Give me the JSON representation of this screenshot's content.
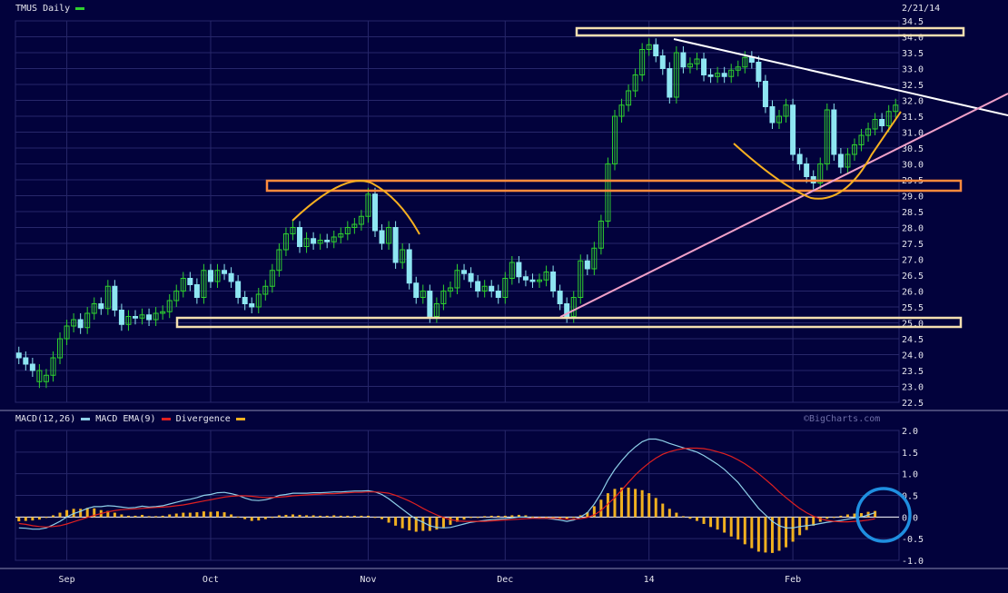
{
  "header": {
    "symbol_title": "TMUS Daily",
    "date_label": "2/21/14"
  },
  "macd_legend": {
    "macd_label": "MACD(12,26)",
    "ema_label": "MACD EMA(9)",
    "div_label": "Divergence",
    "watermark": "©BigCharts.com"
  },
  "colors": {
    "background": "#02023c",
    "grid": "#27276a",
    "up_candle": "#2fd02f",
    "down_candle": "#8ee6f2",
    "macd_line": "#8ecfe8",
    "ema_line": "#e02020",
    "divergence_bars": "#f0b020",
    "resistance_box": "#f4dfb0",
    "orange_box": "#ff8a3d",
    "trendline_white": "#ffffff",
    "trendline_pink": "#f0a0c8",
    "annotation_curve": "#f7b020",
    "circle": "#1f8fe0"
  },
  "chart_data": [
    {
      "type": "candlestick",
      "title": "TMUS Daily",
      "ylim": [
        22.5,
        34.5
      ],
      "yticks": [
        "22.5",
        "23.0",
        "23.5",
        "24.0",
        "24.5",
        "25.0",
        "25.5",
        "26.0",
        "26.5",
        "27.0",
        "27.5",
        "28.0",
        "28.5",
        "29.0",
        "29.5",
        "30.0",
        "30.5",
        "31.0",
        "31.5",
        "32.0",
        "32.5",
        "33.0",
        "33.5",
        "34.0",
        "34.5"
      ],
      "xticks": [
        {
          "label": "Sep",
          "index": 7
        },
        {
          "label": "Oct",
          "index": 28
        },
        {
          "label": "Nov",
          "index": 51
        },
        {
          "label": "Dec",
          "index": 71
        },
        {
          "label": "14",
          "index": 92
        },
        {
          "label": "Feb",
          "index": 113
        }
      ],
      "close": [
        23.9,
        23.7,
        23.5,
        23.15,
        23.35,
        23.9,
        24.5,
        24.9,
        25.1,
        24.85,
        25.3,
        25.6,
        25.45,
        26.15,
        25.4,
        24.95,
        25.2,
        25.15,
        25.25,
        25.1,
        25.3,
        25.35,
        25.7,
        26.0,
        26.4,
        26.2,
        25.8,
        26.65,
        26.3,
        26.65,
        26.55,
        26.3,
        25.8,
        25.6,
        25.5,
        25.9,
        26.15,
        26.65,
        27.3,
        27.8,
        28.0,
        27.4,
        27.65,
        27.5,
        27.6,
        27.55,
        27.7,
        27.8,
        28.0,
        28.1,
        28.35,
        29.05,
        27.9,
        27.5,
        28.0,
        26.9,
        27.3,
        26.25,
        25.8,
        26.0,
        25.2,
        25.6,
        26.0,
        26.1,
        26.65,
        26.55,
        26.3,
        26.0,
        26.15,
        26.0,
        25.8,
        26.4,
        26.9,
        26.45,
        26.35,
        26.3,
        26.35,
        26.6,
        26.0,
        25.6,
        25.2,
        25.8,
        26.95,
        26.7,
        27.35,
        28.2,
        30.0,
        31.5,
        31.85,
        32.3,
        32.8,
        33.6,
        33.75,
        33.4,
        33.0,
        32.1,
        33.5,
        33.05,
        33.15,
        33.3,
        32.8,
        32.75,
        32.85,
        32.75,
        32.95,
        33.05,
        33.35,
        33.2,
        32.6,
        31.8,
        31.3,
        31.5,
        31.85,
        30.3,
        30.0,
        29.6,
        29.4,
        30.0,
        31.7,
        30.3,
        29.9,
        30.3,
        30.6,
        30.9,
        31.1,
        31.4,
        31.2,
        31.65,
        31.85
      ],
      "up": [
        false,
        false,
        false,
        true,
        true,
        true,
        true,
        true,
        true,
        false,
        true,
        true,
        false,
        true,
        false,
        false,
        true,
        false,
        true,
        false,
        true,
        true,
        true,
        true,
        true,
        false,
        false,
        true,
        false,
        true,
        false,
        false,
        false,
        false,
        false,
        true,
        true,
        true,
        true,
        true,
        true,
        false,
        true,
        false,
        true,
        false,
        true,
        true,
        true,
        true,
        true,
        true,
        false,
        false,
        true,
        false,
        true,
        false,
        false,
        true,
        false,
        true,
        true,
        true,
        true,
        false,
        false,
        false,
        true,
        false,
        false,
        true,
        true,
        false,
        false,
        false,
        true,
        true,
        false,
        false,
        false,
        true,
        true,
        false,
        true,
        true,
        true,
        true,
        true,
        true,
        true,
        true,
        true,
        false,
        false,
        false,
        true,
        false,
        true,
        true,
        false,
        false,
        true,
        false,
        true,
        true,
        true,
        false,
        false,
        false,
        false,
        true,
        true,
        false,
        false,
        false,
        false,
        true,
        true,
        false,
        false,
        true,
        true,
        true,
        true,
        true,
        false,
        true,
        true
      ],
      "ylabel": "",
      "xlabel": ""
    },
    {
      "type": "line",
      "title": "MACD(12,26)",
      "ylim": [
        -1.0,
        2.0
      ],
      "yticks": [
        "-1.0",
        "-0.5",
        "0.0",
        "0.5",
        "1.0",
        "1.5",
        "2.0"
      ],
      "series": [
        {
          "name": "MACD(12,26)",
          "values": [
            -0.25,
            -0.26,
            -0.28,
            -0.28,
            -0.25,
            -0.18,
            -0.1,
            0.0,
            0.08,
            0.13,
            0.2,
            0.24,
            0.24,
            0.26,
            0.25,
            0.23,
            0.21,
            0.22,
            0.25,
            0.23,
            0.24,
            0.26,
            0.3,
            0.34,
            0.38,
            0.41,
            0.45,
            0.5,
            0.52,
            0.56,
            0.57,
            0.54,
            0.5,
            0.44,
            0.39,
            0.38,
            0.4,
            0.44,
            0.5,
            0.52,
            0.55,
            0.55,
            0.55,
            0.56,
            0.56,
            0.57,
            0.58,
            0.58,
            0.59,
            0.6,
            0.6,
            0.61,
            0.58,
            0.52,
            0.42,
            0.3,
            0.18,
            0.06,
            -0.05,
            -0.12,
            -0.2,
            -0.24,
            -0.25,
            -0.24,
            -0.2,
            -0.16,
            -0.12,
            -0.1,
            -0.08,
            -0.06,
            -0.05,
            -0.04,
            -0.02,
            0.0,
            0.0,
            -0.02,
            -0.03,
            -0.03,
            -0.05,
            -0.07,
            -0.1,
            -0.07,
            0.0,
            0.1,
            0.3,
            0.55,
            0.85,
            1.1,
            1.3,
            1.48,
            1.62,
            1.74,
            1.8,
            1.8,
            1.76,
            1.7,
            1.65,
            1.6,
            1.55,
            1.5,
            1.42,
            1.32,
            1.22,
            1.1,
            0.95,
            0.8,
            0.6,
            0.4,
            0.2,
            0.05,
            -0.1,
            -0.2,
            -0.25,
            -0.25,
            -0.22,
            -0.2,
            -0.18,
            -0.15,
            -0.12,
            -0.1,
            -0.08,
            -0.05,
            -0.02,
            0.0,
            0.05,
            0.1
          ]
        },
        {
          "name": "MACD EMA(9)",
          "values": [
            -0.15,
            -0.17,
            -0.2,
            -0.22,
            -0.23,
            -0.22,
            -0.2,
            -0.16,
            -0.11,
            -0.06,
            -0.01,
            0.04,
            0.08,
            0.12,
            0.15,
            0.17,
            0.18,
            0.19,
            0.2,
            0.21,
            0.22,
            0.23,
            0.24,
            0.26,
            0.28,
            0.31,
            0.34,
            0.37,
            0.4,
            0.43,
            0.46,
            0.48,
            0.49,
            0.49,
            0.48,
            0.46,
            0.45,
            0.45,
            0.46,
            0.47,
            0.49,
            0.5,
            0.51,
            0.52,
            0.53,
            0.54,
            0.54,
            0.55,
            0.56,
            0.57,
            0.57,
            0.58,
            0.58,
            0.57,
            0.55,
            0.5,
            0.44,
            0.37,
            0.29,
            0.2,
            0.12,
            0.05,
            -0.01,
            -0.06,
            -0.09,
            -0.1,
            -0.1,
            -0.1,
            -0.1,
            -0.09,
            -0.08,
            -0.07,
            -0.06,
            -0.05,
            -0.04,
            -0.03,
            -0.03,
            -0.03,
            -0.03,
            -0.04,
            -0.05,
            -0.05,
            -0.04,
            -0.01,
            0.05,
            0.15,
            0.3,
            0.45,
            0.62,
            0.8,
            0.97,
            1.12,
            1.25,
            1.36,
            1.45,
            1.51,
            1.55,
            1.58,
            1.59,
            1.59,
            1.58,
            1.55,
            1.51,
            1.46,
            1.4,
            1.32,
            1.23,
            1.12,
            1.0,
            0.87,
            0.73,
            0.58,
            0.45,
            0.32,
            0.2,
            0.1,
            0.02,
            -0.04,
            -0.08,
            -0.1,
            -0.11,
            -0.11,
            -0.1,
            -0.09,
            -0.07,
            -0.04
          ]
        },
        {
          "name": "Divergence",
          "values": [
            -0.1,
            -0.09,
            -0.08,
            -0.06,
            -0.02,
            0.04,
            0.1,
            0.16,
            0.19,
            0.19,
            0.21,
            0.2,
            0.16,
            0.14,
            0.1,
            0.06,
            0.03,
            0.03,
            0.05,
            0.02,
            0.02,
            0.03,
            0.06,
            0.08,
            0.1,
            0.1,
            0.11,
            0.13,
            0.12,
            0.13,
            0.11,
            0.06,
            0.01,
            -0.05,
            -0.09,
            -0.08,
            -0.05,
            -0.01,
            0.04,
            0.05,
            0.06,
            0.05,
            0.04,
            0.04,
            0.03,
            0.03,
            0.04,
            0.03,
            0.03,
            0.03,
            0.03,
            0.03,
            0.0,
            -0.05,
            -0.13,
            -0.2,
            -0.26,
            -0.31,
            -0.34,
            -0.32,
            -0.32,
            -0.29,
            -0.24,
            -0.18,
            -0.11,
            -0.06,
            -0.02,
            0.0,
            0.02,
            0.03,
            0.03,
            0.03,
            0.04,
            0.05,
            0.04,
            0.01,
            0.0,
            0.0,
            -0.02,
            -0.03,
            -0.05,
            -0.02,
            0.04,
            0.11,
            0.25,
            0.4,
            0.55,
            0.65,
            0.68,
            0.68,
            0.65,
            0.62,
            0.55,
            0.44,
            0.31,
            0.19,
            0.1,
            0.02,
            -0.04,
            -0.09,
            -0.16,
            -0.23,
            -0.29,
            -0.36,
            -0.45,
            -0.52,
            -0.63,
            -0.72,
            -0.8,
            -0.82,
            -0.83,
            -0.78,
            -0.7,
            -0.57,
            -0.42,
            -0.3,
            -0.2,
            -0.11,
            -0.04,
            0.0,
            0.03,
            0.06,
            0.08,
            0.09,
            0.12,
            0.14
          ]
        }
      ],
      "xlabel": "",
      "ylabel": ""
    }
  ]
}
